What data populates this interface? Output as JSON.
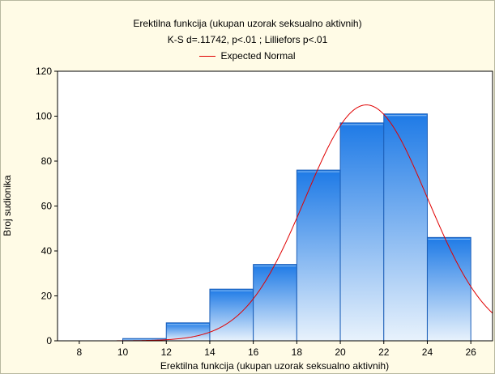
{
  "chart_data": {
    "type": "bar",
    "title": "Erektilna funkcija (ukupan uzorak seksualno aktivnih)",
    "subtitle": "K-S d=.11742, p<.01 ; Lilliefors p<.01",
    "legend": {
      "placement": "top-center",
      "entries": [
        "Expected Normal"
      ]
    },
    "xlabel": "Erektilna funkcija (ukupan uzorak seksualno aktivnih)",
    "ylabel": "Broj sudionika",
    "xlim": [
      7,
      27
    ],
    "ylim": [
      0,
      120
    ],
    "x_ticks": [
      "8",
      "10",
      "12",
      "14",
      "16",
      "18",
      "20",
      "22",
      "24",
      "26"
    ],
    "y_ticks": [
      "0",
      "20",
      "40",
      "60",
      "80",
      "100",
      "120"
    ],
    "bins": [
      {
        "from": 10,
        "to": 12,
        "value": 1
      },
      {
        "from": 12,
        "to": 14,
        "value": 8
      },
      {
        "from": 14,
        "to": 16,
        "value": 23
      },
      {
        "from": 16,
        "to": 18,
        "value": 34
      },
      {
        "from": 18,
        "to": 20,
        "value": 76
      },
      {
        "from": 20,
        "to": 22,
        "value": 97
      },
      {
        "from": 22,
        "to": 24,
        "value": 101
      },
      {
        "from": 24,
        "to": 26,
        "value": 46
      }
    ],
    "expected_normal": {
      "name": "Expected Normal",
      "mean": 21.2,
      "sd": 2.8,
      "peak": 105
    },
    "grid": false,
    "colors": {
      "bar_top": "#1e7ae6",
      "bar_bottom": "#e8f2fc",
      "bar_edge": "#1c5fb8",
      "curve": "#e00000",
      "background": "#fffbe6",
      "plot_bg": "#ffffff"
    }
  }
}
